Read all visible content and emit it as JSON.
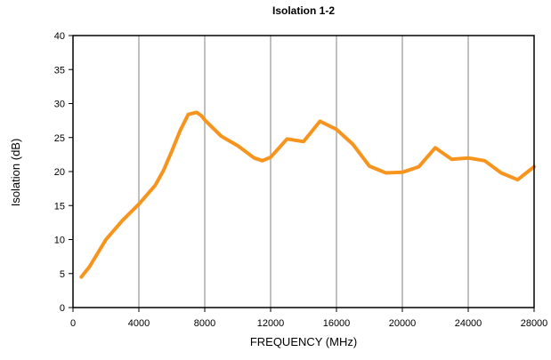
{
  "chart_data": {
    "type": "line",
    "title": "Isolation 1-2",
    "xlabel": "FREQUENCY (MHz)",
    "ylabel": "Isolation (dB)",
    "xlim": [
      0,
      28000
    ],
    "ylim": [
      0,
      40
    ],
    "xticks": [
      0,
      4000,
      8000,
      12000,
      16000,
      20000,
      24000,
      28000
    ],
    "xtick_labels": [
      "0",
      "4000",
      "8000",
      "12000",
      "16000",
      "20000",
      "24000",
      "28000"
    ],
    "yticks": [
      0,
      5,
      10,
      15,
      20,
      25,
      30,
      35,
      40
    ],
    "ytick_labels": [
      "0",
      "5",
      "10",
      "15",
      "20",
      "25",
      "30",
      "35",
      "40"
    ],
    "grid": {
      "vertical": true,
      "horizontal": false
    },
    "legend": "none",
    "series": [
      {
        "color": "#f7941d",
        "x": [
          500,
          1000,
          2000,
          3000,
          4000,
          5000,
          5500,
          6000,
          6500,
          7000,
          7500,
          7800,
          8000,
          9000,
          10000,
          11000,
          11500,
          12000,
          13000,
          14000,
          15000,
          16000,
          17000,
          18000,
          19000,
          20000,
          21000,
          22000,
          23000,
          24000,
          25000,
          26000,
          27000,
          28000
        ],
        "y": [
          4.5,
          6.0,
          10.0,
          12.8,
          15.2,
          18.0,
          20.2,
          23.0,
          26.0,
          28.4,
          28.7,
          28.2,
          27.6,
          25.2,
          23.8,
          22.0,
          21.6,
          22.1,
          24.8,
          24.4,
          27.4,
          26.2,
          24.0,
          20.8,
          19.8,
          19.9,
          20.7,
          23.5,
          21.8,
          22.0,
          21.6,
          19.8,
          18.8,
          20.7
        ]
      }
    ]
  }
}
